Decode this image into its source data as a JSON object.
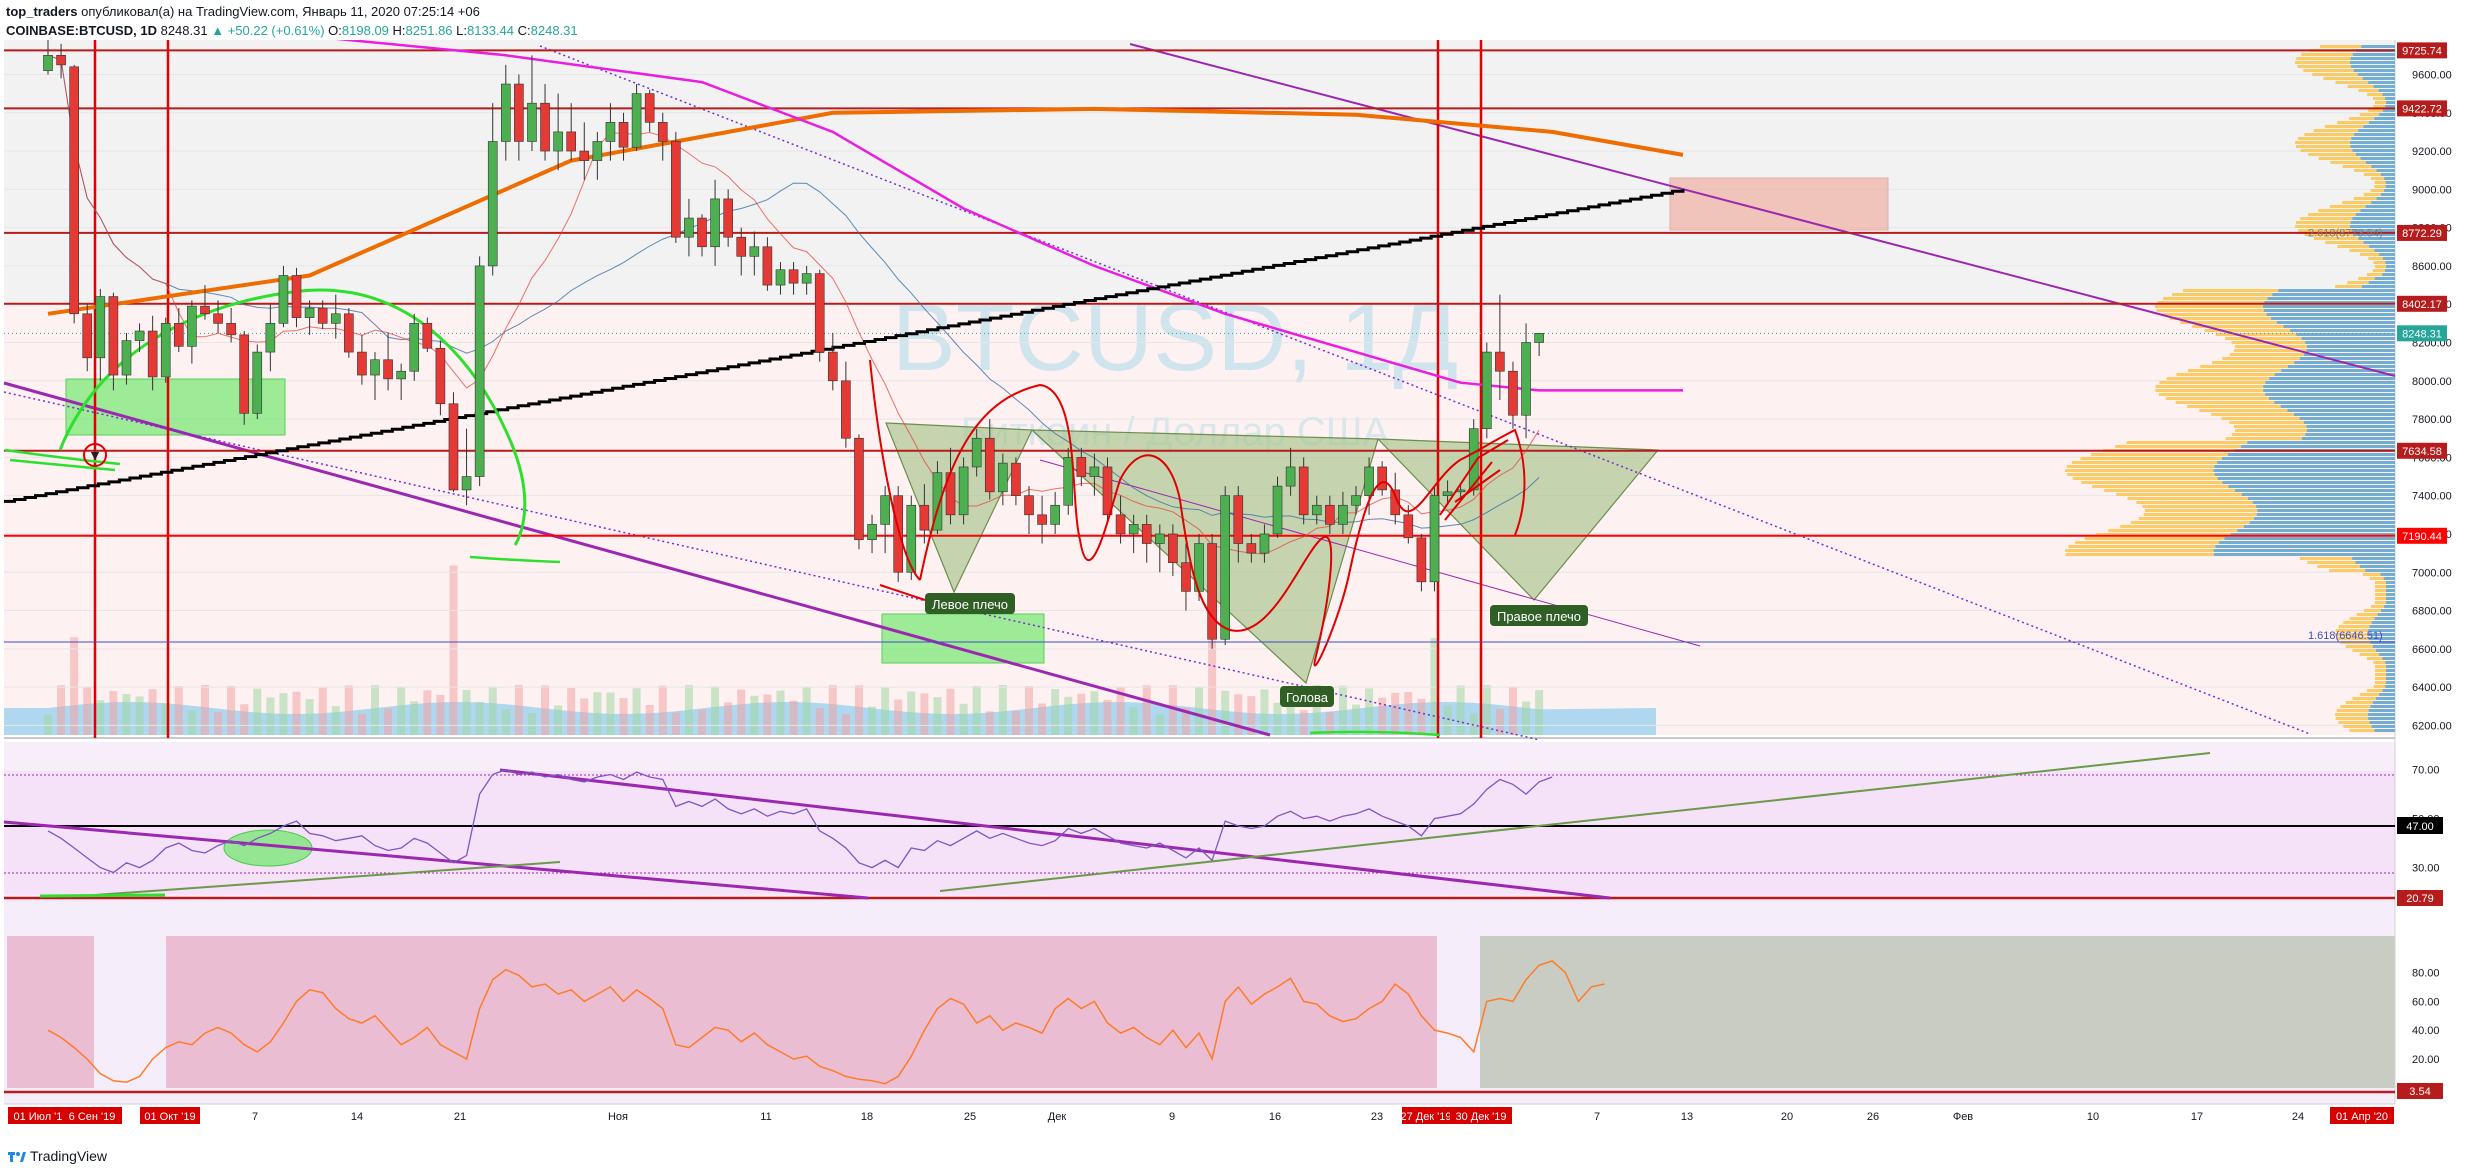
{
  "header": {
    "author": "top_traders",
    "published_text": "опубликовал(а) на TradingView.com, Январь 11, 2020 07:25:14 +06",
    "symbol": "COINBASE:BTCUSD, 1D",
    "last": "8248.31",
    "change": "▲ +50.22 (+0.61%)",
    "o_label": "O:",
    "o_value": "8198.09",
    "h_label": "H:",
    "h_value": "8251.86",
    "l_label": "L:",
    "l_value": "8133.44",
    "c_label": "C:",
    "c_value": "8248.31"
  },
  "footer": {
    "brand": "TradingView"
  },
  "chart_data": {
    "type": "candlestick",
    "watermark": "BTCUSD, 1Д",
    "watermark_sub": "Биткоин / Доллар США",
    "price_axis": {
      "min": 6150,
      "max": 9780,
      "ticks": [
        6200,
        6400,
        6600,
        6800,
        7000,
        7200,
        7400,
        7600,
        7800,
        8000,
        8200,
        8400,
        8600,
        8800,
        9000,
        9200,
        9400,
        9600
      ],
      "tick_labels": [
        "6200.00",
        "6400.00",
        "6600.00",
        "6800.00",
        "7000.00",
        "7200.00",
        "7400.00",
        "7600.00",
        "7800.00",
        "8000.00",
        "8200.00",
        "8400.00",
        "8600.00",
        "8800.00",
        "9000.00",
        "9200.00",
        "9400.00",
        "9600.00"
      ]
    },
    "price_levels": [
      {
        "label": "9725.74",
        "value": 9725.74,
        "color": "#b71c1c"
      },
      {
        "label": "9422.72",
        "value": 9422.72,
        "color": "#b71c1c"
      },
      {
        "label": "8772.29",
        "value": 8772.29,
        "color": "#b71c1c"
      },
      {
        "label": "8402.17",
        "value": 8402.17,
        "color": "#b71c1c"
      },
      {
        "label": "7634.58",
        "value": 7634.58,
        "color": "#b71c1c"
      },
      {
        "label": "7190.44",
        "value": 7190.44,
        "color": "#ff0000"
      }
    ],
    "last_price_label": "8248.31",
    "fib_labels": [
      {
        "text": "2.618(8773.54)",
        "value": 8773.54
      },
      {
        "text": "1.618(6646.51)",
        "value": 6646.51
      }
    ],
    "pattern_labels": [
      "Левое плечо",
      "Голова",
      "Правое плечо"
    ],
    "x_axis": {
      "labels": [
        "7",
        "14",
        "21",
        "Ноя",
        "11",
        "18",
        "25",
        "Дек",
        "9",
        "16",
        "23",
        "30",
        "7",
        "13",
        "20",
        "26",
        "Фев",
        "10",
        "17",
        "24"
      ],
      "highlighted_labels": [
        "01 Июл '19",
        "6 Сен '19",
        "01 Окт '19",
        "27 Дек '19",
        "30 Дек '19",
        "01 Апр '20"
      ]
    },
    "candles": [
      [
        9620,
        9780,
        9600,
        9700
      ],
      [
        9700,
        9760,
        9580,
        9650
      ],
      [
        9640,
        9650,
        8300,
        8350
      ],
      [
        8350,
        8400,
        8050,
        8120
      ],
      [
        8120,
        8480,
        8000,
        8440
      ],
      [
        8440,
        8460,
        7950,
        8030
      ],
      [
        8030,
        8250,
        7980,
        8210
      ],
      [
        8210,
        8300,
        8150,
        8260
      ],
      [
        8260,
        8340,
        7950,
        8020
      ],
      [
        8020,
        8330,
        7990,
        8300
      ],
      [
        8300,
        8380,
        8150,
        8180
      ],
      [
        8180,
        8420,
        8090,
        8390
      ],
      [
        8390,
        8500,
        8320,
        8350
      ],
      [
        8350,
        8420,
        8250,
        8300
      ],
      [
        8300,
        8380,
        8200,
        8240
      ],
      [
        8240,
        8260,
        7770,
        7830
      ],
      [
        7830,
        8190,
        7800,
        8150
      ],
      [
        8150,
        8400,
        8050,
        8300
      ],
      [
        8300,
        8600,
        8280,
        8550
      ],
      [
        8550,
        8590,
        8280,
        8330
      ],
      [
        8330,
        8420,
        8240,
        8380
      ],
      [
        8380,
        8420,
        8270,
        8300
      ],
      [
        8300,
        8450,
        8220,
        8350
      ],
      [
        8350,
        8380,
        8120,
        8150
      ],
      [
        8150,
        8240,
        7980,
        8030
      ],
      [
        8030,
        8150,
        7900,
        8110
      ],
      [
        8110,
        8250,
        7950,
        8010
      ],
      [
        8010,
        8090,
        7900,
        8050
      ],
      [
        8050,
        8350,
        8000,
        8300
      ],
      [
        8300,
        8330,
        8150,
        8170
      ],
      [
        8170,
        8210,
        7820,
        7880
      ],
      [
        7880,
        7940,
        7420,
        7430
      ],
      [
        7430,
        7750,
        7350,
        7500
      ],
      [
        7500,
        8650,
        7450,
        8600
      ],
      [
        8600,
        9450,
        8550,
        9250
      ],
      [
        9250,
        9650,
        9150,
        9550
      ],
      [
        9550,
        9600,
        9150,
        9250
      ],
      [
        9250,
        9700,
        9200,
        9450
      ],
      [
        9450,
        9550,
        9150,
        9200
      ],
      [
        9200,
        9500,
        9100,
        9300
      ],
      [
        9300,
        9450,
        9150,
        9200
      ],
      [
        9200,
        9350,
        9050,
        9150
      ],
      [
        9150,
        9300,
        9050,
        9250
      ],
      [
        9250,
        9450,
        9150,
        9350
      ],
      [
        9350,
        9400,
        9150,
        9220
      ],
      [
        9220,
        9550,
        9200,
        9500
      ],
      [
        9500,
        9520,
        9300,
        9350
      ],
      [
        9350,
        9400,
        9150,
        9250
      ],
      [
        9250,
        9300,
        8720,
        8750
      ],
      [
        8750,
        8950,
        8650,
        8850
      ],
      [
        8850,
        8870,
        8650,
        8700
      ],
      [
        8700,
        9050,
        8600,
        8950
      ],
      [
        8950,
        9000,
        8700,
        8750
      ],
      [
        8750,
        8800,
        8550,
        8650
      ],
      [
        8650,
        8780,
        8550,
        8700
      ],
      [
        8700,
        8750,
        8470,
        8500
      ],
      [
        8500,
        8620,
        8450,
        8580
      ],
      [
        8580,
        8620,
        8450,
        8510
      ],
      [
        8510,
        8600,
        8450,
        8560
      ],
      [
        8560,
        8580,
        8100,
        8150
      ],
      [
        8150,
        8250,
        7950,
        8000
      ],
      [
        8000,
        8100,
        7650,
        7700
      ],
      [
        7700,
        7720,
        7120,
        7170
      ],
      [
        7170,
        7300,
        7100,
        7250
      ],
      [
        7250,
        7450,
        7100,
        7400
      ],
      [
        7400,
        7450,
        6950,
        7000
      ],
      [
        7000,
        7400,
        6960,
        7350
      ],
      [
        7350,
        7460,
        7150,
        7220
      ],
      [
        7220,
        7580,
        7200,
        7520
      ],
      [
        7520,
        7650,
        7250,
        7300
      ],
      [
        7300,
        7600,
        7250,
        7550
      ],
      [
        7550,
        7750,
        7500,
        7700
      ],
      [
        7700,
        7800,
        7380,
        7420
      ],
      [
        7420,
        7620,
        7350,
        7570
      ],
      [
        7570,
        7600,
        7350,
        7400
      ],
      [
        7400,
        7450,
        7200,
        7300
      ],
      [
        7300,
        7400,
        7150,
        7250
      ],
      [
        7250,
        7420,
        7200,
        7350
      ],
      [
        7350,
        7650,
        7300,
        7600
      ],
      [
        7600,
        7650,
        7450,
        7500
      ],
      [
        7500,
        7620,
        7400,
        7550
      ],
      [
        7550,
        7600,
        7250,
        7300
      ],
      [
        7300,
        7400,
        7150,
        7200
      ],
      [
        7200,
        7300,
        7100,
        7250
      ],
      [
        7250,
        7300,
        7050,
        7150
      ],
      [
        7150,
        7250,
        7000,
        7200
      ],
      [
        7200,
        7250,
        6980,
        7050
      ],
      [
        7050,
        7150,
        6800,
        6900
      ],
      [
        6900,
        7200,
        6850,
        7150
      ],
      [
        7150,
        7200,
        6600,
        6650
      ],
      [
        6650,
        7450,
        6620,
        7400
      ],
      [
        7400,
        7450,
        7050,
        7150
      ],
      [
        7150,
        7200,
        7050,
        7100
      ],
      [
        7100,
        7250,
        7050,
        7200
      ],
      [
        7200,
        7500,
        7180,
        7450
      ],
      [
        7450,
        7650,
        7400,
        7550
      ],
      [
        7550,
        7600,
        7250,
        7300
      ],
      [
        7300,
        7400,
        7250,
        7350
      ],
      [
        7350,
        7400,
        7200,
        7250
      ],
      [
        7250,
        7420,
        7200,
        7350
      ],
      [
        7350,
        7450,
        7300,
        7400
      ],
      [
        7400,
        7600,
        7300,
        7550
      ],
      [
        7550,
        7580,
        7400,
        7430
      ],
      [
        7430,
        7520,
        7250,
        7300
      ],
      [
        7300,
        7350,
        7150,
        7180
      ],
      [
        7180,
        7200,
        6900,
        6950
      ],
      [
        6950,
        7450,
        6900,
        7400
      ],
      [
        7400,
        7480,
        7350,
        7420
      ],
      [
        7420,
        7460,
        7380,
        7430
      ],
      [
        7430,
        7800,
        7400,
        7750
      ],
      [
        7750,
        8200,
        7700,
        8150
      ],
      [
        8150,
        8450,
        7900,
        8050
      ],
      [
        8050,
        8100,
        7750,
        7820
      ],
      [
        7820,
        8300,
        7700,
        8200
      ],
      [
        8200,
        8250,
        8130,
        8248
      ]
    ],
    "ma_orange_200": [
      [
        0,
        8350
      ],
      [
        20,
        8550
      ],
      [
        40,
        9150
      ],
      [
        60,
        9400
      ],
      [
        80,
        9420
      ],
      [
        100,
        9390
      ],
      [
        115,
        9300
      ],
      [
        125,
        9180
      ]
    ],
    "ma_magenta": [
      [
        20,
        9800
      ],
      [
        35,
        9700
      ],
      [
        50,
        9560
      ],
      [
        60,
        9300
      ],
      [
        70,
        8900
      ],
      [
        80,
        8600
      ],
      [
        90,
        8350
      ],
      [
        100,
        8150
      ],
      [
        108,
        7990
      ],
      [
        114,
        7950
      ],
      [
        125,
        7950
      ]
    ],
    "ma_black_stepline": [
      [
        0,
        7370
      ],
      [
        125,
        9000
      ]
    ],
    "rsi": {
      "levels": [
        {
          "label": "70.00",
          "value": 70
        },
        {
          "label": "47.00",
          "value": 47
        },
        {
          "label": "30.00",
          "value": 30
        }
      ],
      "level_low_label": "20.79",
      "axis_ticks": [
        "30.00",
        "50.00",
        "70.00"
      ],
      "values": [
        45,
        42,
        38,
        34,
        30,
        28,
        32,
        30,
        33,
        38,
        40,
        37,
        36,
        39,
        41,
        39,
        42,
        44,
        47,
        49,
        44,
        43,
        41,
        42,
        43,
        39,
        37,
        38,
        42,
        40,
        36,
        32,
        35,
        60,
        68,
        70,
        68,
        69,
        67,
        68,
        66,
        65,
        67,
        68,
        66,
        69,
        67,
        66,
        55,
        57,
        55,
        58,
        54,
        52,
        54,
        51,
        53,
        52,
        54,
        45,
        42,
        38,
        32,
        30,
        33,
        30,
        38,
        37,
        41,
        39,
        42,
        45,
        42,
        44,
        42,
        40,
        39,
        41,
        46,
        44,
        46,
        43,
        40,
        39,
        38,
        40,
        37,
        34,
        38,
        33,
        49,
        47,
        46,
        47,
        51,
        53,
        50,
        51,
        49,
        51,
        52,
        54,
        51,
        49,
        47,
        43,
        50,
        51,
        52,
        56,
        62,
        66,
        64,
        60,
        65,
        67
      ]
    },
    "stoch": {
      "axis_ticks": [
        "20.00",
        "40.00",
        "60.00",
        "80.00"
      ],
      "level_low_label": "3.54",
      "values": [
        40,
        35,
        28,
        20,
        10,
        5,
        4,
        8,
        20,
        28,
        32,
        30,
        38,
        42,
        38,
        30,
        25,
        32,
        45,
        60,
        68,
        66,
        55,
        48,
        45,
        50,
        40,
        30,
        35,
        42,
        30,
        25,
        20,
        55,
        75,
        82,
        78,
        70,
        72,
        65,
        68,
        60,
        65,
        70,
        60,
        68,
        62,
        55,
        30,
        28,
        35,
        42,
        40,
        32,
        38,
        30,
        25,
        20,
        22,
        15,
        12,
        8,
        6,
        5,
        3,
        8,
        22,
        40,
        55,
        62,
        58,
        45,
        50,
        40,
        45,
        42,
        38,
        55,
        62,
        55,
        60,
        45,
        38,
        42,
        35,
        30,
        40,
        28,
        38,
        20,
        60,
        70,
        58,
        65,
        70,
        76,
        60,
        58,
        50,
        46,
        48,
        55,
        60,
        72,
        65,
        50,
        40,
        38,
        35,
        25,
        60,
        62,
        60,
        75,
        85,
        88,
        80,
        60,
        70,
        72
      ]
    }
  }
}
